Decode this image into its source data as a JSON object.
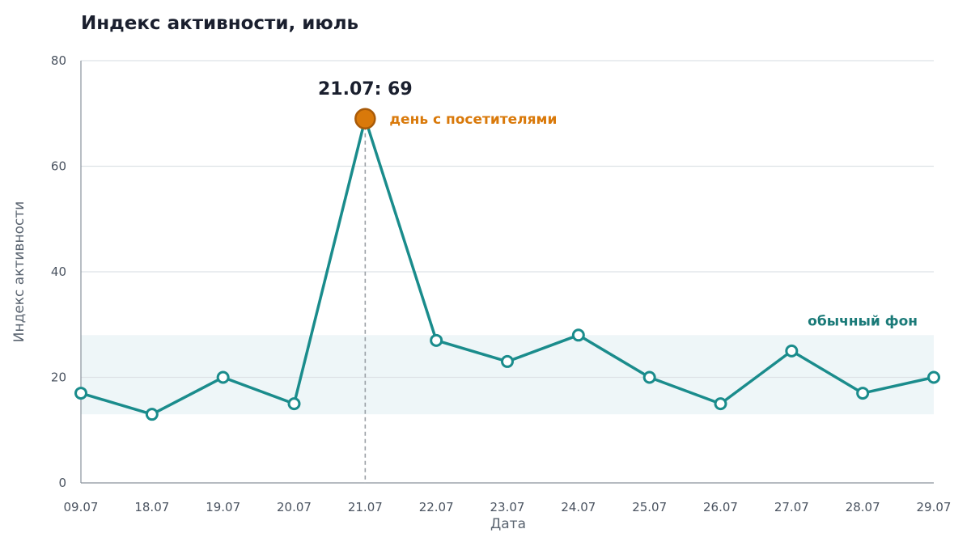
{
  "chart_data": {
    "type": "line",
    "title": "Индекс активности, июль",
    "xlabel": "Дата",
    "ylabel": "Индекс активности",
    "ylim": [
      0,
      80
    ],
    "yticks": [
      0,
      20,
      40,
      60,
      80
    ],
    "grid": true,
    "categories": [
      "09.07",
      "18.07",
      "19.07",
      "20.07",
      "21.07",
      "22.07",
      "23.07",
      "24.07",
      "25.07",
      "26.07",
      "27.07",
      "28.07",
      "29.07"
    ],
    "series": [
      {
        "values": [
          17,
          13,
          20,
          15,
          69,
          27,
          23,
          28,
          20,
          15,
          25,
          17,
          20
        ]
      }
    ],
    "band": {
      "from": 13,
      "to": 28,
      "label": "обычный фон"
    },
    "highlight": {
      "index": 4,
      "value_label": "21.07: 69",
      "label": "день с посетителями"
    }
  },
  "colors": {
    "line": "#1a8c8c",
    "highlight": "#d9790a",
    "highlight_stroke": "#a85a08",
    "band": "#eef6f8",
    "band_label": "#1a7a78",
    "grid": "#dde2e6",
    "axis": "#8a929c"
  }
}
